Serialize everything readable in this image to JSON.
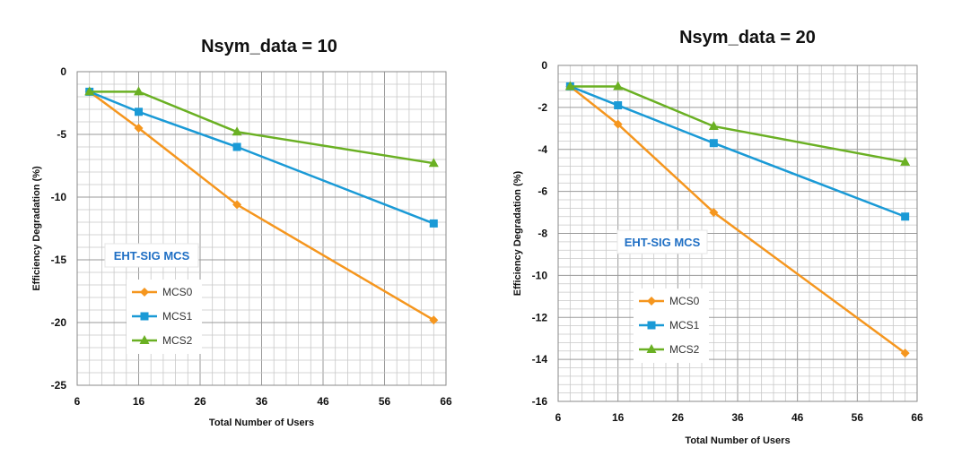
{
  "chart_data": [
    {
      "type": "line",
      "title": "Nsym_data = 10",
      "xlabel": "Total Number of Users",
      "ylabel": "Efficiency Degradation (%)",
      "xlim": [
        6,
        66
      ],
      "ylim": [
        -25,
        0
      ],
      "x_ticks": [
        6,
        16,
        26,
        36,
        46,
        56,
        66
      ],
      "y_ticks": [
        0,
        -5,
        -10,
        -15,
        -20,
        -25
      ],
      "legend_title": "EHT-SIG MCS",
      "legend_position": "lower-left",
      "grid": true,
      "x": [
        8,
        16,
        32,
        64
      ],
      "series": [
        {
          "name": "MCS0",
          "color": "#f5961e",
          "marker": "diamond",
          "values": [
            -1.6,
            -4.5,
            -10.6,
            -19.8
          ]
        },
        {
          "name": "MCS1",
          "color": "#1a9ad6",
          "marker": "square",
          "values": [
            -1.6,
            -3.2,
            -6.0,
            -12.1
          ]
        },
        {
          "name": "MCS2",
          "color": "#6ab023",
          "marker": "triangle",
          "values": [
            -1.6,
            -1.6,
            -4.8,
            -7.3
          ]
        }
      ]
    },
    {
      "type": "line",
      "title": "Nsym_data = 20",
      "xlabel": "Total Number of Users",
      "ylabel": "Efficiency Degradation (%)",
      "xlim": [
        6,
        66
      ],
      "ylim": [
        -16,
        0
      ],
      "x_ticks": [
        6,
        16,
        26,
        36,
        46,
        56,
        66
      ],
      "y_ticks": [
        0,
        -2,
        -4,
        -6,
        -8,
        -10,
        -12,
        -14,
        -16
      ],
      "legend_title": "EHT-SIG MCS",
      "legend_position": "lower-left",
      "grid": true,
      "x": [
        8,
        16,
        32,
        64
      ],
      "series": [
        {
          "name": "MCS0",
          "color": "#f5961e",
          "marker": "diamond",
          "values": [
            -1.0,
            -2.8,
            -7.0,
            -13.7
          ]
        },
        {
          "name": "MCS1",
          "color": "#1a9ad6",
          "marker": "square",
          "values": [
            -1.0,
            -1.9,
            -3.7,
            -7.2
          ]
        },
        {
          "name": "MCS2",
          "color": "#6ab023",
          "marker": "triangle",
          "values": [
            -1.0,
            -1.0,
            -2.9,
            -4.6
          ]
        }
      ]
    }
  ]
}
